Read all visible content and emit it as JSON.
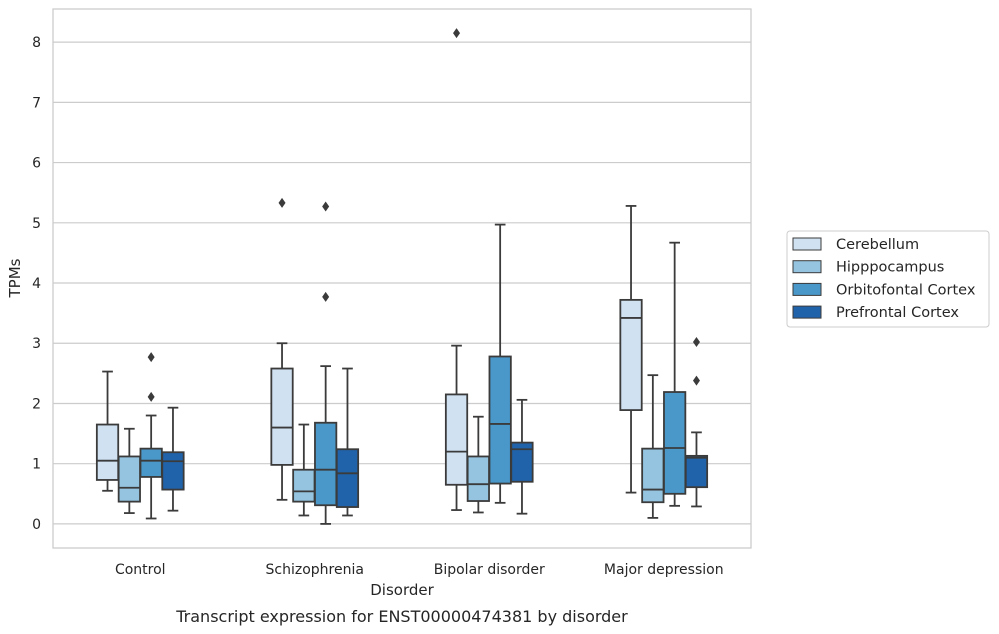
{
  "chart_data": {
    "type": "boxplot",
    "title": "",
    "caption": "Transcript expression for ENST00000474381 by disorder",
    "xlabel": "Disorder",
    "ylabel": "TPMs",
    "ylim": [
      -0.4,
      8.55
    ],
    "yticks": [
      0,
      1,
      2,
      3,
      4,
      5,
      6,
      7,
      8
    ],
    "grid": true,
    "legend_position": "right",
    "categories": [
      "Control",
      "Schizophrenia",
      "Bipolar disorder",
      "Major depression"
    ],
    "series": [
      {
        "name": "Cerebellum",
        "color": "#d0e1f2",
        "boxes": [
          {
            "whislo": 0.55,
            "q1": 0.73,
            "med": 1.05,
            "q3": 1.65,
            "whishi": 2.53,
            "fliers": []
          },
          {
            "whislo": 0.4,
            "q1": 0.98,
            "med": 1.6,
            "q3": 2.58,
            "whishi": 3.0,
            "fliers": [
              5.33
            ]
          },
          {
            "whislo": 0.23,
            "q1": 0.65,
            "med": 1.2,
            "q3": 2.15,
            "whishi": 2.96,
            "fliers": [
              8.15
            ]
          },
          {
            "whislo": 0.52,
            "q1": 1.89,
            "med": 3.42,
            "q3": 3.72,
            "whishi": 5.28,
            "fliers": []
          }
        ]
      },
      {
        "name": "Hipppocampus",
        "color": "#94c4df",
        "boxes": [
          {
            "whislo": 0.18,
            "q1": 0.37,
            "med": 0.6,
            "q3": 1.12,
            "whishi": 1.58,
            "fliers": []
          },
          {
            "whislo": 0.14,
            "q1": 0.37,
            "med": 0.54,
            "q3": 0.9,
            "whishi": 1.65,
            "fliers": []
          },
          {
            "whislo": 0.19,
            "q1": 0.38,
            "med": 0.66,
            "q3": 1.12,
            "whishi": 1.78,
            "fliers": []
          },
          {
            "whislo": 0.1,
            "q1": 0.36,
            "med": 0.57,
            "q3": 1.25,
            "whishi": 2.47,
            "fliers": []
          }
        ]
      },
      {
        "name": "Orbitofontal Cortex",
        "color": "#4a98c9",
        "boxes": [
          {
            "whislo": 0.09,
            "q1": 0.78,
            "med": 1.05,
            "q3": 1.25,
            "whishi": 1.8,
            "fliers": [
              2.11,
              2.77
            ]
          },
          {
            "whislo": 0.0,
            "q1": 0.31,
            "med": 0.9,
            "q3": 1.68,
            "whishi": 2.62,
            "fliers": [
              3.77,
              5.27
            ]
          },
          {
            "whislo": 0.35,
            "q1": 0.67,
            "med": 1.66,
            "q3": 2.78,
            "whishi": 4.97,
            "fliers": []
          },
          {
            "whislo": 0.3,
            "q1": 0.5,
            "med": 1.26,
            "q3": 2.19,
            "whishi": 4.67,
            "fliers": []
          }
        ]
      },
      {
        "name": "Prefrontal Cortex",
        "color": "#2163aa",
        "boxes": [
          {
            "whislo": 0.22,
            "q1": 0.57,
            "med": 1.04,
            "q3": 1.19,
            "whishi": 1.93,
            "fliers": []
          },
          {
            "whislo": 0.14,
            "q1": 0.28,
            "med": 0.84,
            "q3": 1.24,
            "whishi": 2.58,
            "fliers": []
          },
          {
            "whislo": 0.17,
            "q1": 0.7,
            "med": 1.24,
            "q3": 1.35,
            "whishi": 2.06,
            "fliers": []
          },
          {
            "whislo": 0.29,
            "q1": 0.61,
            "med": 1.1,
            "q3": 1.13,
            "whishi": 1.52,
            "fliers": [
              2.38,
              3.02
            ]
          }
        ]
      }
    ]
  }
}
